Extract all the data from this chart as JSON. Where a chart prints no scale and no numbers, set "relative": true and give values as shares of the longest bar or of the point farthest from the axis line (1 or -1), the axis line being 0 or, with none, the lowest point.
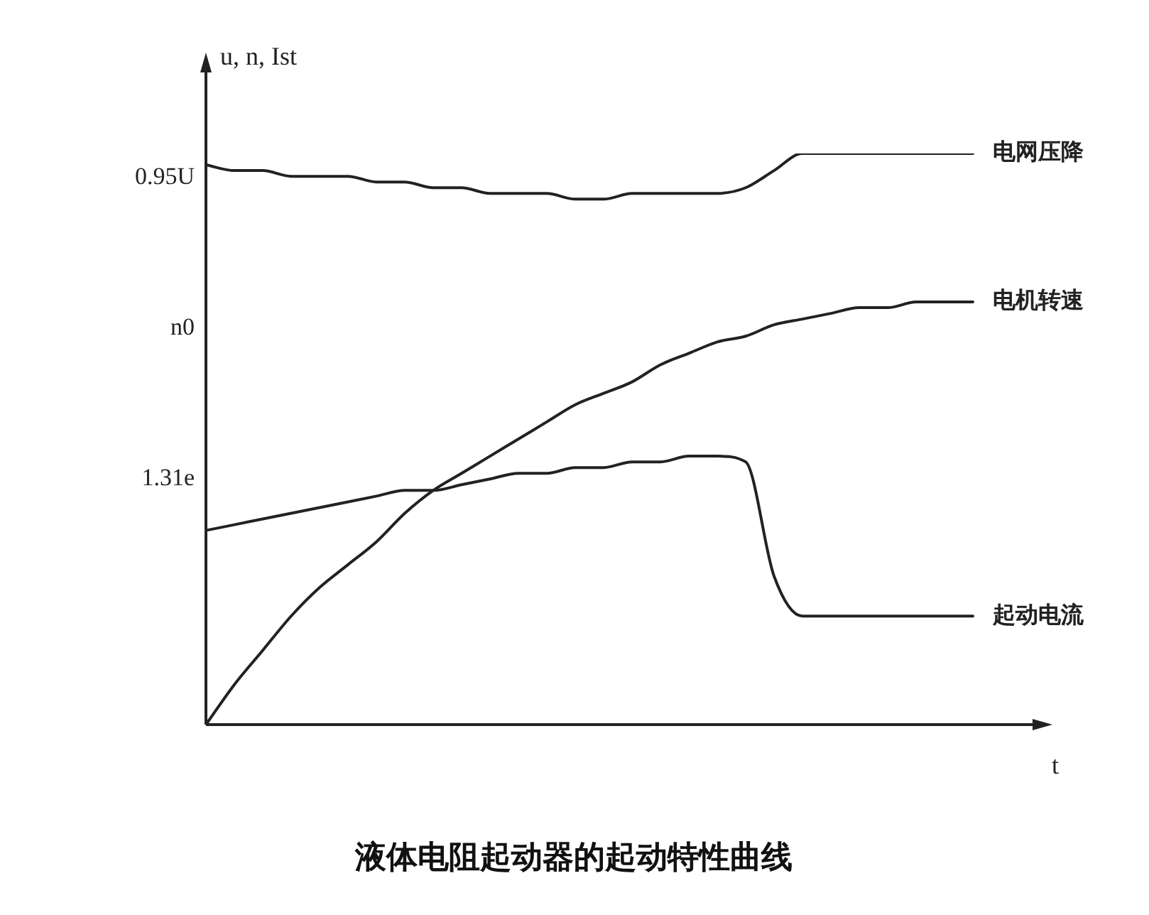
{
  "chart_data": {
    "type": "line",
    "title": "液体电阻起动器的起动特性曲线",
    "xlabel": "t",
    "ylabel": "u, n, Ist",
    "relative": true,
    "legend": false,
    "marker": "none",
    "line_style": "solid",
    "categories": [
      null,
      null,
      null,
      null,
      null,
      null,
      null,
      null,
      null,
      null,
      null,
      null,
      null,
      null,
      null,
      null,
      null,
      null,
      null,
      null,
      null,
      null,
      null,
      null,
      null,
      null,
      null,
      null
    ],
    "series": [
      {
        "name": "电网压降",
        "color": "#222222",
        "values": [
          0.98,
          0.97,
          0.97,
          0.96,
          0.96,
          0.96,
          0.95,
          0.95,
          0.94,
          0.94,
          0.93,
          0.93,
          0.93,
          0.92,
          0.92,
          0.93,
          0.93,
          0.93,
          0.93,
          0.94,
          0.97,
          1,
          1,
          1,
          1,
          1,
          1,
          1
        ]
      },
      {
        "name": "电机转速",
        "color": "#222222",
        "values": [
          0,
          0.07,
          0.13,
          0.19,
          0.24,
          0.28,
          0.32,
          0.37,
          0.41,
          0.44,
          0.47,
          0.5,
          0.53,
          0.56,
          0.58,
          0.6,
          0.63,
          0.65,
          0.67,
          0.68,
          0.7,
          0.71,
          0.72,
          0.73,
          0.73,
          0.74,
          0.74,
          0.74
        ]
      },
      {
        "name": "起动电流",
        "color": "#222222",
        "values": [
          0.34,
          0.35,
          0.36,
          0.37,
          0.38,
          0.39,
          0.4,
          0.41,
          0.41,
          0.42,
          0.43,
          0.44,
          0.44,
          0.45,
          0.45,
          0.46,
          0.46,
          0.47,
          0.47,
          0.46,
          0.26,
          0.19,
          0.19,
          0.19,
          0.19,
          0.19,
          0.19,
          0.19
        ]
      }
    ],
    "annotations": [
      "0.95U",
      "n0",
      "1.31e"
    ]
  }
}
